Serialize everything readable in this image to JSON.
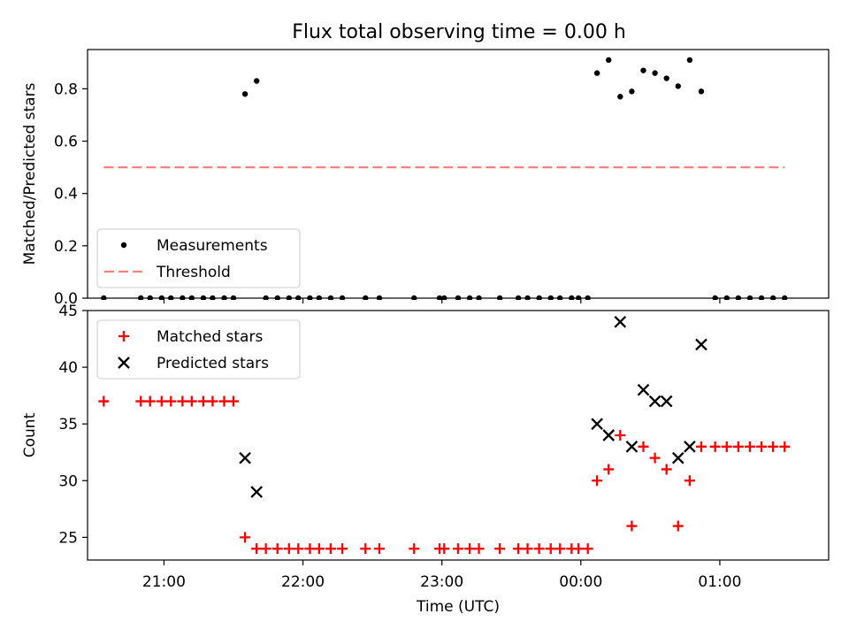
{
  "title": "Flux total observing time = 0.00 h",
  "colors": {
    "measurement": "#000000",
    "threshold": "#ff7f7f",
    "matched": "#ff0000",
    "predicted": "#000000"
  },
  "chart_data": [
    {
      "type": "scatter",
      "title": "Flux total observing time = 0.00 h",
      "ylabel": "Matched/Predicted stars",
      "xlabel": "",
      "xlim": [
        "20:27",
        "01:47"
      ],
      "ylim": [
        0,
        0.95
      ],
      "yticks": [
        "0.0",
        "0.2",
        "0.4",
        "0.6",
        "0.8"
      ],
      "legend": {
        "placement": "lower-left",
        "entries": [
          "Measurements",
          "Threshold"
        ]
      },
      "series": [
        {
          "name": "Measurements",
          "marker": "dot",
          "points": [
            [
              "20:34",
              0.0
            ],
            [
              "20:50",
              0.0
            ],
            [
              "20:54",
              0.0
            ],
            [
              "20:59",
              0.0
            ],
            [
              "21:03",
              0.0
            ],
            [
              "21:08",
              0.0
            ],
            [
              "21:12",
              0.0
            ],
            [
              "21:17",
              0.0
            ],
            [
              "21:21",
              0.0
            ],
            [
              "21:26",
              0.0
            ],
            [
              "21:30",
              0.0
            ],
            [
              "21:35",
              0.78
            ],
            [
              "21:40",
              0.83
            ],
            [
              "21:44",
              0.0
            ],
            [
              "21:49",
              0.0
            ],
            [
              "21:54",
              0.0
            ],
            [
              "21:58",
              0.0
            ],
            [
              "22:03",
              0.0
            ],
            [
              "22:07",
              0.0
            ],
            [
              "22:12",
              0.0
            ],
            [
              "22:17",
              0.0
            ],
            [
              "22:27",
              0.0
            ],
            [
              "22:33",
              0.0
            ],
            [
              "22:48",
              0.0
            ],
            [
              "22:59",
              0.0
            ],
            [
              "23:01",
              0.0
            ],
            [
              "23:07",
              0.0
            ],
            [
              "23:12",
              0.0
            ],
            [
              "23:16",
              0.0
            ],
            [
              "23:25",
              0.0
            ],
            [
              "23:33",
              0.0
            ],
            [
              "23:37",
              0.0
            ],
            [
              "23:42",
              0.0
            ],
            [
              "23:47",
              0.0
            ],
            [
              "23:51",
              0.0
            ],
            [
              "23:56",
              0.0
            ],
            [
              "23:59",
              0.0
            ],
            [
              "00:03",
              0.0
            ],
            [
              "00:07",
              0.86
            ],
            [
              "00:12",
              0.91
            ],
            [
              "00:17",
              0.77
            ],
            [
              "00:22",
              0.79
            ],
            [
              "00:27",
              0.87
            ],
            [
              "00:32",
              0.86
            ],
            [
              "00:37",
              0.84
            ],
            [
              "00:42",
              0.81
            ],
            [
              "00:47",
              0.91
            ],
            [
              "00:52",
              0.79
            ],
            [
              "00:58",
              0.0
            ],
            [
              "01:03",
              0.0
            ],
            [
              "01:08",
              0.0
            ],
            [
              "01:13",
              0.0
            ],
            [
              "01:18",
              0.0
            ],
            [
              "01:23",
              0.0
            ],
            [
              "01:28",
              0.0
            ]
          ]
        },
        {
          "name": "Threshold",
          "style": "dashed",
          "x": [
            "20:34",
            "01:28"
          ],
          "y": [
            0.5,
            0.5
          ]
        }
      ]
    },
    {
      "type": "scatter",
      "title": "",
      "ylabel": "Count",
      "xlabel": "Time (UTC)",
      "xlim": [
        "20:27",
        "01:47"
      ],
      "ylim": [
        23,
        45
      ],
      "yticks": [
        "25",
        "30",
        "35",
        "40",
        "45"
      ],
      "xticks": [
        "21:00",
        "22:00",
        "23:00",
        "00:00",
        "01:00"
      ],
      "legend": {
        "placement": "upper-left",
        "entries": [
          "Matched stars",
          "Predicted stars"
        ]
      },
      "series": [
        {
          "name": "Matched stars",
          "marker": "plus",
          "points": [
            [
              "20:34",
              37
            ],
            [
              "20:50",
              37
            ],
            [
              "20:54",
              37
            ],
            [
              "20:59",
              37
            ],
            [
              "21:03",
              37
            ],
            [
              "21:08",
              37
            ],
            [
              "21:12",
              37
            ],
            [
              "21:17",
              37
            ],
            [
              "21:21",
              37
            ],
            [
              "21:26",
              37
            ],
            [
              "21:30",
              37
            ],
            [
              "21:35",
              25
            ],
            [
              "21:40",
              24
            ],
            [
              "21:44",
              24
            ],
            [
              "21:49",
              24
            ],
            [
              "21:54",
              24
            ],
            [
              "21:58",
              24
            ],
            [
              "22:03",
              24
            ],
            [
              "22:07",
              24
            ],
            [
              "22:12",
              24
            ],
            [
              "22:17",
              24
            ],
            [
              "22:27",
              24
            ],
            [
              "22:33",
              24
            ],
            [
              "22:48",
              24
            ],
            [
              "22:59",
              24
            ],
            [
              "23:01",
              24
            ],
            [
              "23:07",
              24
            ],
            [
              "23:12",
              24
            ],
            [
              "23:16",
              24
            ],
            [
              "23:25",
              24
            ],
            [
              "23:33",
              24
            ],
            [
              "23:37",
              24
            ],
            [
              "23:42",
              24
            ],
            [
              "23:47",
              24
            ],
            [
              "23:51",
              24
            ],
            [
              "23:56",
              24
            ],
            [
              "23:59",
              24
            ],
            [
              "00:03",
              24
            ],
            [
              "00:07",
              30
            ],
            [
              "00:12",
              31
            ],
            [
              "00:17",
              34
            ],
            [
              "00:22",
              26
            ],
            [
              "00:27",
              33
            ],
            [
              "00:32",
              32
            ],
            [
              "00:37",
              31
            ],
            [
              "00:42",
              26
            ],
            [
              "00:47",
              30
            ],
            [
              "00:52",
              33
            ],
            [
              "00:58",
              33
            ],
            [
              "01:03",
              33
            ],
            [
              "01:08",
              33
            ],
            [
              "01:13",
              33
            ],
            [
              "01:18",
              33
            ],
            [
              "01:23",
              33
            ],
            [
              "01:28",
              33
            ]
          ]
        },
        {
          "name": "Predicted stars",
          "marker": "x",
          "points": [
            [
              "21:35",
              32
            ],
            [
              "21:40",
              29
            ],
            [
              "00:07",
              35
            ],
            [
              "00:12",
              34
            ],
            [
              "00:17",
              44
            ],
            [
              "00:22",
              33
            ],
            [
              "00:27",
              38
            ],
            [
              "00:32",
              37
            ],
            [
              "00:37",
              37
            ],
            [
              "00:42",
              32
            ],
            [
              "00:47",
              33
            ],
            [
              "00:52",
              42
            ]
          ]
        }
      ]
    }
  ]
}
